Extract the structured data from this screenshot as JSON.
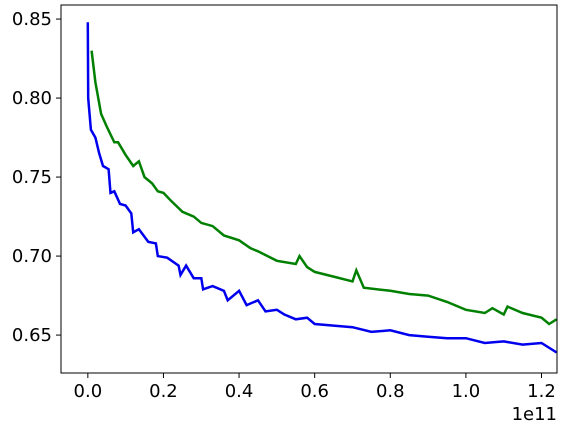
{
  "chart_data": {
    "type": "line",
    "x_offset_label": "1e11",
    "xlim": [
      -0.071,
      1.241
    ],
    "ylim": [
      0.626,
      0.8589
    ],
    "xticks": [
      {
        "value": 0,
        "label": "0.0"
      },
      0.2,
      0.4,
      0.6,
      0.8,
      {
        "value": 1,
        "label": "1.0"
      },
      1.2
    ],
    "yticks": [
      0.65,
      {
        "value": 0.7,
        "label": "0.70"
      },
      0.75,
      {
        "value": 0.8,
        "label": "0.80"
      },
      0.85
    ],
    "series": [
      {
        "color": "#0000ee",
        "x": [
          0,
          0.001,
          0.008,
          0.02,
          0.03,
          0.04,
          0.055,
          0.06,
          0.07,
          0.085,
          0.1,
          0.115,
          0.12,
          0.135,
          0.16,
          0.18,
          0.185,
          0.21,
          0.24,
          0.245,
          0.26,
          0.28,
          0.3,
          0.305,
          0.33,
          0.36,
          0.37,
          0.4,
          0.42,
          0.45,
          0.47,
          0.5,
          0.52,
          0.55,
          0.58,
          0.6,
          0.65,
          0.7,
          0.75,
          0.8,
          0.85,
          0.9,
          0.95,
          1.0,
          1.05,
          1.1,
          1.15,
          1.2,
          1.24
        ],
        "values": [
          0.848,
          0.8,
          0.78,
          0.775,
          0.765,
          0.757,
          0.755,
          0.74,
          0.741,
          0.733,
          0.732,
          0.727,
          0.715,
          0.717,
          0.709,
          0.708,
          0.7,
          0.699,
          0.694,
          0.688,
          0.694,
          0.686,
          0.686,
          0.679,
          0.681,
          0.678,
          0.672,
          0.678,
          0.669,
          0.672,
          0.665,
          0.666,
          0.663,
          0.66,
          0.661,
          0.657,
          0.656,
          0.655,
          0.652,
          0.653,
          0.65,
          0.649,
          0.648,
          0.648,
          0.645,
          0.646,
          0.644,
          0.645,
          0.639
        ]
      },
      {
        "color": "#008000",
        "x": [
          0.01,
          0.02,
          0.035,
          0.05,
          0.07,
          0.08,
          0.1,
          0.12,
          0.135,
          0.15,
          0.17,
          0.185,
          0.2,
          0.22,
          0.25,
          0.28,
          0.3,
          0.33,
          0.36,
          0.4,
          0.43,
          0.45,
          0.5,
          0.55,
          0.56,
          0.58,
          0.6,
          0.65,
          0.7,
          0.71,
          0.73,
          0.8,
          0.85,
          0.9,
          0.95,
          1.0,
          1.05,
          1.07,
          1.1,
          1.11,
          1.15,
          1.2,
          1.22,
          1.24
        ],
        "values": [
          0.83,
          0.81,
          0.79,
          0.782,
          0.772,
          0.772,
          0.764,
          0.757,
          0.76,
          0.75,
          0.746,
          0.741,
          0.74,
          0.735,
          0.728,
          0.725,
          0.721,
          0.719,
          0.713,
          0.71,
          0.705,
          0.703,
          0.697,
          0.695,
          0.7,
          0.693,
          0.69,
          0.687,
          0.684,
          0.691,
          0.68,
          0.678,
          0.676,
          0.675,
          0.671,
          0.666,
          0.664,
          0.667,
          0.663,
          0.668,
          0.664,
          0.661,
          0.657,
          0.66
        ]
      }
    ]
  }
}
